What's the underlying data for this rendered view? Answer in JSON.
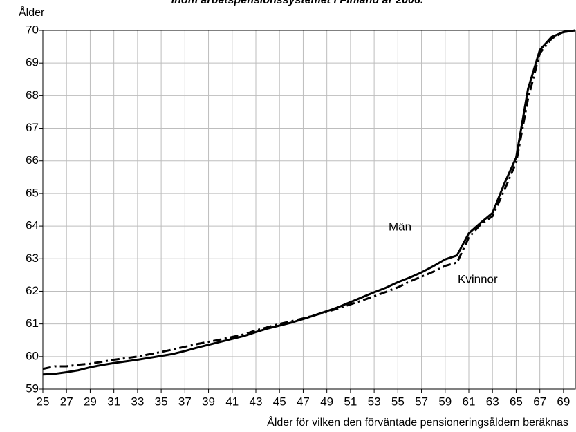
{
  "chart_data": {
    "type": "line",
    "title": "inom arbetspensionssystemet i Finland år 2006.",
    "y_label": "Ålder",
    "x_label": "Ålder för vilken den förväntade pensioneringsåldern beräknas",
    "x": [
      25,
      26,
      27,
      28,
      29,
      30,
      31,
      32,
      33,
      34,
      35,
      36,
      37,
      38,
      39,
      40,
      41,
      42,
      43,
      44,
      45,
      46,
      47,
      48,
      49,
      50,
      51,
      52,
      53,
      54,
      55,
      56,
      57,
      58,
      59,
      60,
      61,
      62,
      63,
      64,
      65,
      66,
      67,
      68,
      69,
      70
    ],
    "series": [
      {
        "name": "Män",
        "color": "#000000",
        "dash": "solid",
        "values": [
          59.45,
          59.47,
          59.52,
          59.58,
          59.67,
          59.74,
          59.8,
          59.85,
          59.9,
          59.96,
          60.02,
          60.08,
          60.17,
          60.27,
          60.36,
          60.45,
          60.54,
          60.63,
          60.75,
          60.86,
          60.95,
          61.04,
          61.15,
          61.27,
          61.39,
          61.52,
          61.67,
          61.82,
          61.97,
          62.11,
          62.28,
          62.42,
          62.58,
          62.77,
          62.98,
          63.1,
          63.78,
          64.1,
          64.4,
          65.3,
          66.1,
          68.2,
          69.4,
          69.8,
          69.95,
          70
        ]
      },
      {
        "name": "Kvinnor",
        "color": "#000000",
        "dash": "dashdot",
        "values": [
          59.62,
          59.7,
          59.7,
          59.75,
          59.78,
          59.84,
          59.9,
          59.95,
          60.0,
          60.07,
          60.14,
          60.22,
          60.3,
          60.38,
          60.45,
          60.52,
          60.6,
          60.68,
          60.8,
          60.9,
          61.0,
          61.08,
          61.17,
          61.27,
          61.37,
          61.48,
          61.6,
          61.72,
          61.85,
          61.98,
          62.12,
          62.3,
          62.45,
          62.6,
          62.78,
          62.88,
          63.65,
          64.05,
          64.3,
          65.1,
          65.95,
          67.9,
          69.3,
          69.75,
          69.95,
          70
        ]
      }
    ],
    "xlim": [
      25,
      70
    ],
    "xticks": [
      25,
      27,
      29,
      31,
      33,
      35,
      37,
      39,
      41,
      43,
      45,
      47,
      49,
      51,
      53,
      55,
      57,
      59,
      61,
      63,
      65,
      67,
      69
    ],
    "ylim": [
      59,
      70
    ],
    "yticks": [
      59,
      60,
      61,
      62,
      63,
      64,
      65,
      66,
      67,
      68,
      69,
      70
    ],
    "grid": true
  }
}
